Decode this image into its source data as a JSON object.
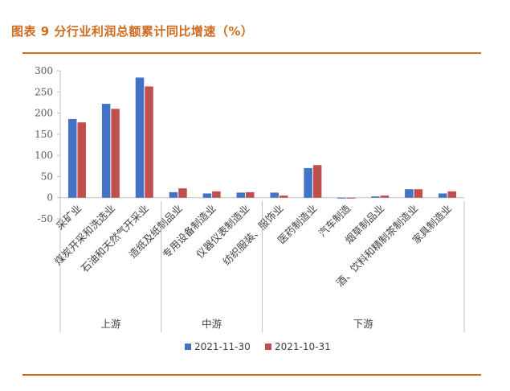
{
  "title": "图表 9 分行业利润总额累计同比增速（%）",
  "colors": {
    "accent": "#D06B1E",
    "series1": "#4472C4",
    "series2": "#C0504D",
    "axis": "#BFBFBF"
  },
  "chart_data": {
    "type": "bar",
    "title": "",
    "xlabel": "",
    "ylabel": "",
    "ylim": [
      -50,
      300
    ],
    "yticks": [
      -50,
      0,
      50,
      100,
      150,
      200,
      250,
      300
    ],
    "grid": false,
    "legend_position": "bottom",
    "categories": [
      "采矿业",
      "煤炭开采和洗选业",
      "石油和天然气开采业",
      "造纸及纸制品业",
      "专用设备制造业",
      "仪器仪表制造业",
      "纺织服装、服饰业",
      "医药制造业",
      "汽车制造",
      "烟草制品业",
      "酒、饮料和精制茶制造业",
      "家具制造业"
    ],
    "groups": [
      {
        "name": "上游",
        "start": 0,
        "end": 2
      },
      {
        "name": "中游",
        "start": 3,
        "end": 5
      },
      {
        "name": "下游",
        "start": 6,
        "end": 11
      }
    ],
    "series": [
      {
        "name": "2021-11-30",
        "values": [
          186,
          222,
          284,
          13,
          10,
          12,
          12,
          70,
          -2,
          3,
          20,
          10
        ]
      },
      {
        "name": "2021-10-31",
        "values": [
          178,
          210,
          263,
          22,
          15,
          13,
          5,
          77,
          -2,
          5,
          20,
          15
        ]
      }
    ]
  }
}
